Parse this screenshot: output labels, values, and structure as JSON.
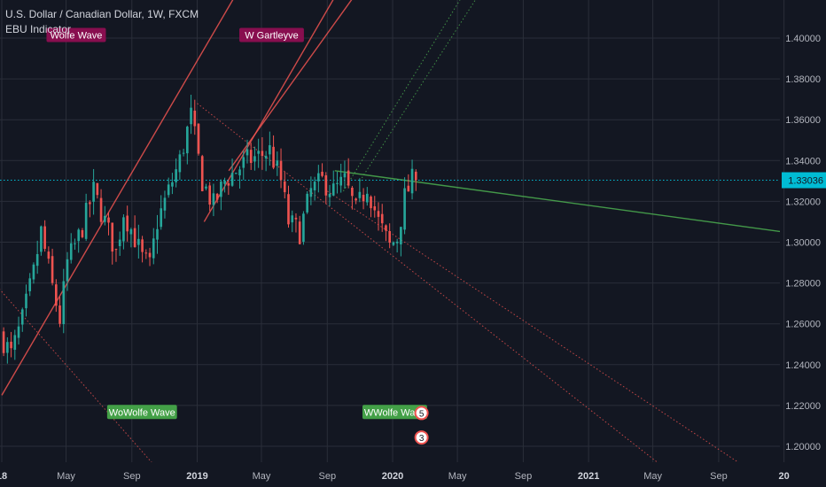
{
  "header": {
    "title": "U.S. Dollar / Canadian Dollar, 1W, FXCM",
    "indicator": "EBU Indicator"
  },
  "colors": {
    "background": "#131722",
    "grid": "#2a2e39",
    "candle_up": "#26a69a",
    "candle_down": "#ef5350",
    "trend_red": "#ef5350",
    "trend_green": "#4caf50",
    "price_line": "#00bcd4",
    "label_maroon": "#880e4f",
    "label_green": "#43a047"
  },
  "chart_data": {
    "type": "candlestick",
    "symbol": "USDCAD",
    "timeframe": "1W",
    "ylim": [
      1.19,
      1.425
    ],
    "xlim": [
      "2017-12-31",
      "2021-12-31"
    ],
    "current_price": 1.33036,
    "current_price_label": "1.33036",
    "grid": true,
    "y_ticks": [
      {
        "value": 1.4,
        "label": "1.40000"
      },
      {
        "value": 1.38,
        "label": "1.38000"
      },
      {
        "value": 1.36,
        "label": "1.36000"
      },
      {
        "value": 1.34,
        "label": "1.34000"
      },
      {
        "value": 1.32,
        "label": "1.32000"
      },
      {
        "value": 1.3,
        "label": "1.30000"
      },
      {
        "value": 1.28,
        "label": "1.28000"
      },
      {
        "value": 1.26,
        "label": "1.26000"
      },
      {
        "value": 1.24,
        "label": "1.24000"
      },
      {
        "value": 1.22,
        "label": "1.22000"
      },
      {
        "value": 1.2,
        "label": "1.20000"
      }
    ],
    "x_ticks": [
      {
        "date": "2018-01-01",
        "label": "18",
        "bold": true
      },
      {
        "date": "2018-05-01",
        "label": "May",
        "bold": false
      },
      {
        "date": "2018-09-01",
        "label": "Sep",
        "bold": false
      },
      {
        "date": "2019-01-01",
        "label": "2019",
        "bold": true
      },
      {
        "date": "2019-05-01",
        "label": "May",
        "bold": false
      },
      {
        "date": "2019-09-01",
        "label": "Sep",
        "bold": false
      },
      {
        "date": "2020-01-01",
        "label": "2020",
        "bold": true
      },
      {
        "date": "2020-05-01",
        "label": "May",
        "bold": false
      },
      {
        "date": "2020-09-01",
        "label": "Sep",
        "bold": false
      },
      {
        "date": "2021-01-01",
        "label": "2021",
        "bold": true
      },
      {
        "date": "2021-05-01",
        "label": "May",
        "bold": false
      },
      {
        "date": "2021-09-01",
        "label": "Sep",
        "bold": false
      },
      {
        "date": "2022-01-01",
        "label": "20",
        "bold": true
      }
    ],
    "price_path": [
      [
        "2018-01-01",
        1.255
      ],
      [
        "2018-01-22",
        1.245
      ],
      [
        "2018-02-12",
        1.262
      ],
      [
        "2018-03-05",
        1.285
      ],
      [
        "2018-03-19",
        1.305
      ],
      [
        "2018-04-09",
        1.278
      ],
      [
        "2018-04-23",
        1.262
      ],
      [
        "2018-05-07",
        1.29
      ],
      [
        "2018-06-01",
        1.305
      ],
      [
        "2018-06-25",
        1.325
      ],
      [
        "2018-07-16",
        1.31
      ],
      [
        "2018-08-06",
        1.295
      ],
      [
        "2018-08-20",
        1.315
      ],
      [
        "2018-09-10",
        1.302
      ],
      [
        "2018-09-24",
        1.292
      ],
      [
        "2018-10-08",
        1.288
      ],
      [
        "2018-10-22",
        1.31
      ],
      [
        "2018-11-12",
        1.325
      ],
      [
        "2018-12-03",
        1.34
      ],
      [
        "2018-12-24",
        1.362
      ],
      [
        "2019-01-14",
        1.33
      ],
      [
        "2019-02-04",
        1.318
      ],
      [
        "2019-02-25",
        1.33
      ],
      [
        "2019-03-18",
        1.335
      ],
      [
        "2019-04-08",
        1.34
      ],
      [
        "2019-04-29",
        1.342
      ],
      [
        "2019-05-20",
        1.345
      ],
      [
        "2019-06-10",
        1.33
      ],
      [
        "2019-06-24",
        1.31
      ],
      [
        "2019-07-15",
        1.305
      ],
      [
        "2019-08-05",
        1.325
      ],
      [
        "2019-08-26",
        1.33
      ],
      [
        "2019-09-16",
        1.325
      ],
      [
        "2019-10-07",
        1.33
      ],
      [
        "2019-10-28",
        1.315
      ],
      [
        "2019-11-18",
        1.328
      ],
      [
        "2019-12-09",
        1.31
      ],
      [
        "2019-12-30",
        1.298
      ],
      [
        "2020-01-13",
        1.302
      ],
      [
        "2020-01-27",
        1.322
      ],
      [
        "2020-02-10",
        1.33
      ]
    ],
    "trend_lines": [
      {
        "color": "red",
        "style": "solid",
        "from": [
          "2018-01-01",
          1.225
        ],
        "to": [
          "2019-05-06",
          1.445
        ]
      },
      {
        "color": "red",
        "style": "solid",
        "from": [
          "2019-01-14",
          1.31
        ],
        "to": [
          "2020-04-01",
          1.51
        ]
      },
      {
        "color": "red",
        "style": "solid",
        "from": [
          "2019-03-01",
          1.335
        ],
        "to": [
          "2020-04-01",
          1.48
        ]
      },
      {
        "color": "red",
        "style": "dotted",
        "from": [
          "2017-12-01",
          1.285
        ],
        "to": [
          "2018-10-15",
          1.19
        ]
      },
      {
        "color": "red",
        "style": "dotted",
        "from": [
          "2019-01-01",
          1.368
        ],
        "to": [
          "2021-05-20",
          1.19
        ]
      },
      {
        "color": "red",
        "style": "dotted",
        "from": [
          "2019-09-01",
          1.325
        ],
        "to": [
          "2021-10-20",
          1.19
        ]
      },
      {
        "color": "green",
        "style": "dotted",
        "from": [
          "2019-10-01",
          1.325
        ],
        "to": [
          "2020-06-01",
          1.43
        ]
      },
      {
        "color": "green",
        "style": "dotted",
        "from": [
          "2019-11-01",
          1.33
        ],
        "to": [
          "2020-07-01",
          1.43
        ]
      },
      {
        "color": "green",
        "style": "solid",
        "from": [
          "2019-09-15",
          1.335
        ],
        "to": [
          "2021-12-31",
          1.305
        ]
      }
    ],
    "annotations": [
      {
        "text": "Wolfe Wave",
        "date": "2018-05-20",
        "price": 1.4015,
        "style": "maroon"
      },
      {
        "text": "W Gartleyve",
        "date": "2019-05-20",
        "price": 1.4015,
        "style": "maroon"
      },
      {
        "text": "WoWolfe Wave",
        "date": "2018-09-20",
        "price": 1.2168,
        "style": "green"
      },
      {
        "text": "WWolfe Wave",
        "date": "2020-01-05",
        "price": 1.2168,
        "style": "green"
      }
    ],
    "markers": [
      {
        "text": "5",
        "date": "2020-02-24",
        "price": 1.2163
      },
      {
        "text": "3",
        "date": "2020-02-24",
        "price": 1.2043
      }
    ]
  }
}
